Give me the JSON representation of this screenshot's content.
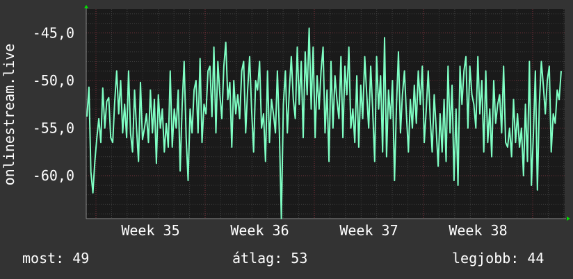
{
  "chart_data": {
    "type": "line",
    "ylabel": "onlinestream.live",
    "xlabel": "",
    "title": "",
    "yticks": [
      -45,
      -50,
      -55,
      -60
    ],
    "ytick_labels": [
      "-45,0",
      "-50,0",
      "-55,0",
      "-60,0"
    ],
    "xtick_labels": [
      "Week 35",
      "Week 36",
      "Week 37",
      "Week 38"
    ],
    "ylim": [
      -64.5,
      -42.5
    ],
    "grid": true,
    "series": [
      {
        "color": "#7fffc4",
        "values": [
          -53.8,
          -50.7,
          -59.6,
          -61.8,
          -58.5,
          -56.0,
          -54.0,
          -56.5,
          -50.8,
          -55.0,
          -52.2,
          -51.8,
          -56.0,
          -56.5,
          -52.3,
          -49.0,
          -53.5,
          -50.0,
          -55.5,
          -52.5,
          -56.0,
          -49.0,
          -55.6,
          -57.5,
          -51.0,
          -55.0,
          -58.5,
          -50.2,
          -56.2,
          -55.0,
          -53.5,
          -56.5,
          -51.0,
          -55.5,
          -52.0,
          -58.7,
          -51.5,
          -55.0,
          -53.0,
          -57.5,
          -54.5,
          -57.0,
          -49.0,
          -57.0,
          -53.0,
          -55.0,
          -51.0,
          -59.5,
          -52.5,
          -48.0,
          -56.0,
          -60.5,
          -53.0,
          -55.5,
          -51.0,
          -50.0,
          -55.5,
          -47.7,
          -56.5,
          -52.5,
          -53.5,
          -49.0,
          -48.5,
          -53.8,
          -46.5,
          -55.5,
          -48.0,
          -51.5,
          -54.0,
          -48.5,
          -46.0,
          -52.0,
          -50.2,
          -57.0,
          -50.0,
          -53.5,
          -51.5,
          -54.0,
          -49.0,
          -48.0,
          -55.5,
          -51.0,
          -47.5,
          -53.0,
          -57.5,
          -50.0,
          -51.0,
          -48.0,
          -55.0,
          -53.5,
          -58.5,
          -49.0,
          -56.5,
          -52.0,
          -53.5,
          -55.5,
          -49.0,
          -55.5,
          -64.5,
          -52.5,
          -49.0,
          -55.5,
          -51.0,
          -47.5,
          -52.0,
          -54.0,
          -46.5,
          -52.5,
          -48.0,
          -56.0,
          -47.0,
          -51.5,
          -44.5,
          -53.0,
          -46.5,
          -56.0,
          -49.5,
          -53.0,
          -49.0,
          -46.5,
          -55.5,
          -51.0,
          -58.5,
          -48.0,
          -55.0,
          -49.5,
          -52.0,
          -54.0,
          -47.5,
          -56.0,
          -48.5,
          -51.5,
          -46.5,
          -55.0,
          -53.0,
          -56.5,
          -49.5,
          -57.0,
          -50.5,
          -54.0,
          -47.5,
          -51.5,
          -55.0,
          -48.5,
          -53.0,
          -58.5,
          -47.5,
          -53.0,
          -49.5,
          -57.5,
          -45.5,
          -58.0,
          -51.0,
          -54.0,
          -50.0,
          -60.5,
          -52.5,
          -47.0,
          -55.5,
          -51.5,
          -49.0,
          -53.5,
          -57.5,
          -52.0,
          -55.0,
          -50.5,
          -54.5,
          -49.0,
          -52.5,
          -48.5,
          -56.5,
          -53.0,
          -49.0,
          -54.0,
          -57.5,
          -51.5,
          -55.0,
          -59.0,
          -53.5,
          -57.5,
          -52.0,
          -58.5,
          -48.5,
          -55.5,
          -50.5,
          -60.5,
          -53.0,
          -61.0,
          -48.5,
          -52.5,
          -49.0,
          -47.5,
          -55.0,
          -48.5,
          -51.5,
          -52.5,
          -55.0,
          -47.5,
          -53.5,
          -50.0,
          -57.5,
          -49.0,
          -56.5,
          -53.0,
          -58.0,
          -50.0,
          -54.5,
          -52.5,
          -51.5,
          -55.5,
          -48.5,
          -56.5,
          -57.0,
          -55.0,
          -58.0,
          -52.0,
          -56.5,
          -53.5,
          -57.0,
          -55.0,
          -60.0,
          -52.5,
          -58.5,
          -48.0,
          -61.0,
          -55.5,
          -49.0,
          -61.5,
          -52.5,
          -48.0,
          -50.5,
          -53.5,
          -50.0,
          -48.5,
          -57.5,
          -53.5,
          -54.5,
          -51.0,
          -52.0,
          -49.0
        ]
      }
    ]
  },
  "stats": {
    "current": "most: 49",
    "average": "átlag: 53",
    "best": "legjobb: 44"
  },
  "colors": {
    "background": "#333333",
    "plot_background": "#1a1a1a",
    "line": "#7fffc4",
    "grid_major": "#7a2e3a",
    "grid_minor": "#3e3e3e",
    "axis": "#8a8a8a",
    "arrow": "#00e000"
  }
}
